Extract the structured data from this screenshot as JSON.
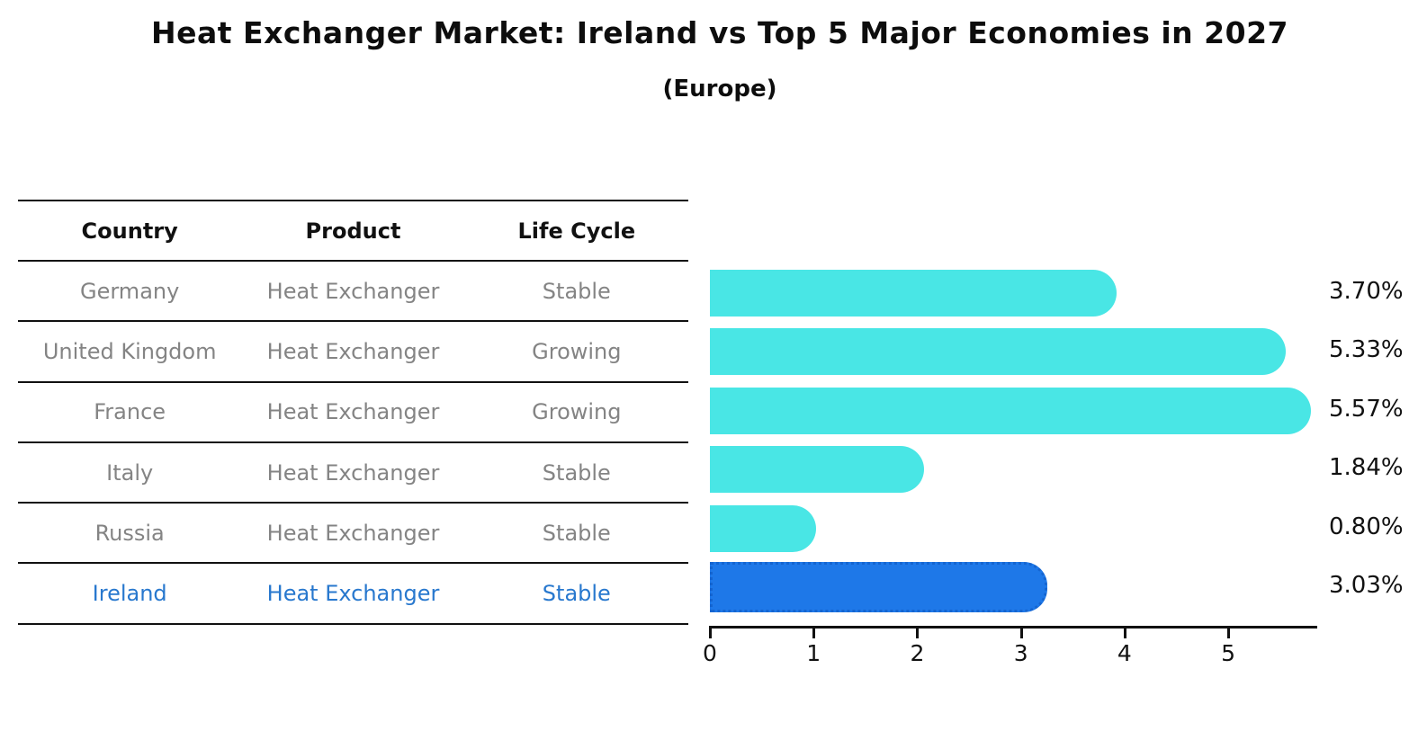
{
  "title": "Heat Exchanger Market: Ireland vs Top 5 Major Economies in 2027",
  "subtitle": "(Europe)",
  "table": {
    "headers": [
      "Country",
      "Product",
      "Life Cycle"
    ],
    "rows": [
      {
        "country": "Germany",
        "product": "Heat Exchanger",
        "life_cycle": "Stable",
        "highlight": false
      },
      {
        "country": "United Kingdom",
        "product": "Heat Exchanger",
        "life_cycle": "Growing",
        "highlight": false
      },
      {
        "country": "France",
        "product": "Heat Exchanger",
        "life_cycle": "Growing",
        "highlight": false
      },
      {
        "country": "Italy",
        "product": "Heat Exchanger",
        "life_cycle": "Stable",
        "highlight": false
      },
      {
        "country": "Russia",
        "product": "Heat Exchanger",
        "life_cycle": "Stable",
        "highlight": false
      },
      {
        "country": "Ireland",
        "product": "Heat Exchanger",
        "life_cycle": "Stable",
        "highlight": true
      }
    ]
  },
  "chart_data": {
    "type": "bar",
    "orientation": "horizontal",
    "title": "Heat Exchanger Market: Ireland vs Top 5 Major Economies in 2027",
    "subtitle": "(Europe)",
    "categories": [
      "Germany",
      "United Kingdom",
      "France",
      "Italy",
      "Russia",
      "Ireland"
    ],
    "values": [
      3.7,
      5.33,
      5.57,
      1.84,
      0.8,
      3.03
    ],
    "value_labels": [
      "3.70%",
      "5.33%",
      "5.57%",
      "1.84%",
      "0.80%",
      "3.03%"
    ],
    "xticks": [
      "0",
      "1",
      "2",
      "3",
      "4",
      "5"
    ],
    "xlim": [
      0,
      5.85
    ],
    "grid": false,
    "legend": "none",
    "highlight_index": 5,
    "xlabel": "",
    "ylabel": ""
  },
  "colors": {
    "bar": "#49E6E5",
    "highlight_bar": "#1E78E8",
    "highlight_border": "#1565D0",
    "highlight_text": "#2878CE",
    "table_text": "#848484",
    "axis": "#111111"
  }
}
